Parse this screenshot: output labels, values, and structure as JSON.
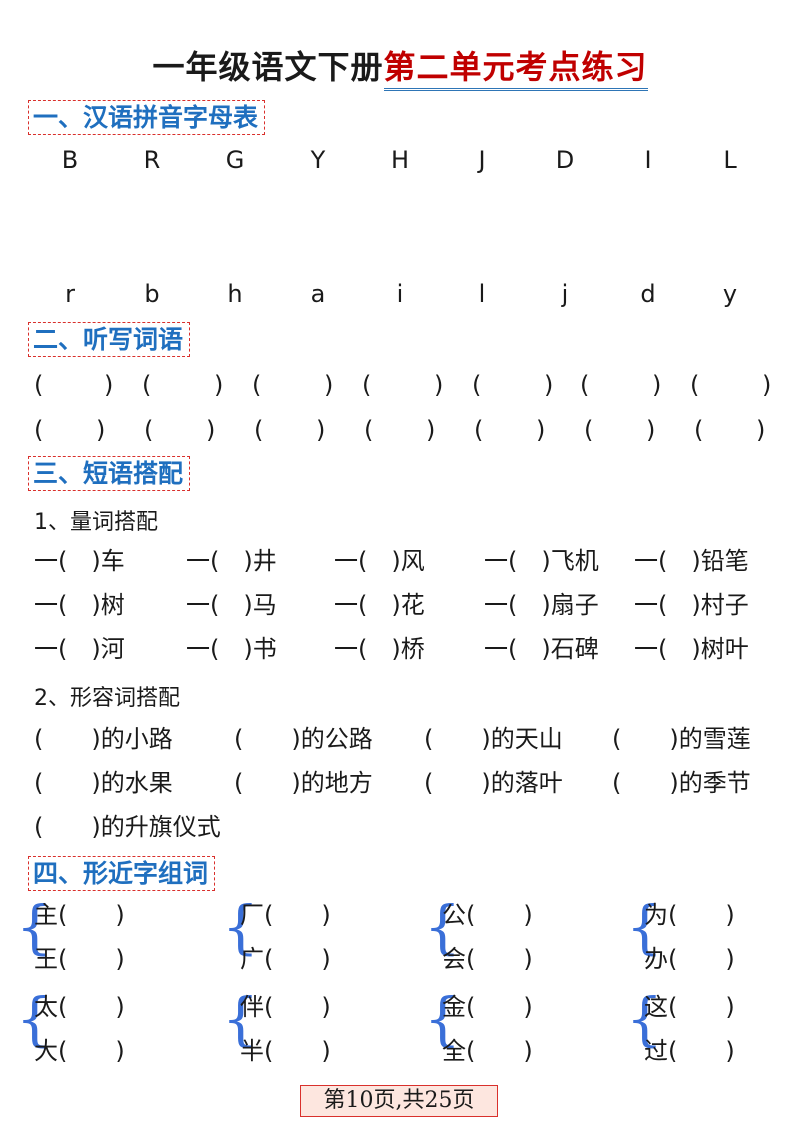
{
  "title": {
    "part1": "一年级语文下册",
    "part2": "第二单元考点练习"
  },
  "section1": {
    "heading": "一、汉语拼音字母表",
    "upper": [
      "B",
      "R",
      "G",
      "Y",
      "H",
      "J",
      "D",
      "I",
      "L"
    ],
    "lower": [
      "r",
      "b",
      "h",
      "a",
      "i",
      "l",
      "j",
      "d",
      "y"
    ]
  },
  "section2": {
    "heading": "二、听写词语",
    "paren_open": "(",
    "paren_close": ")"
  },
  "section3": {
    "heading": "三、短语搭配",
    "sub1": "1、量词搭配",
    "measure_rows": [
      [
        "一(　)车",
        "一(　)井",
        "一(　)风",
        "一(　)飞机",
        "一(　)铅笔"
      ],
      [
        "一(　)树",
        "一(　)马",
        "一(　)花",
        "一(　)扇子",
        "一(　)村子"
      ],
      [
        "一(　)河",
        "一(　)书",
        "一(　)桥",
        "一(　)石碑",
        "一(　)树叶"
      ]
    ],
    "sub2": "2、形容词搭配",
    "adj_rows": [
      [
        "(　　)的小路",
        "(　　)的公路",
        "(　　)的天山",
        "(　　)的雪莲"
      ],
      [
        "(　　)的水果",
        "(　　)的地方",
        "(　　)的落叶",
        "(　　)的季节"
      ],
      [
        "(　　)的升旗仪式"
      ]
    ]
  },
  "section4": {
    "heading": "四、形近字组词",
    "brace_glyph": "{",
    "groups": [
      [
        "主(　　)",
        "王(　　)"
      ],
      [
        "厂(　　)",
        "广(　　)"
      ],
      [
        "公(　　)",
        "会(　　)"
      ],
      [
        "为(　　)",
        "办(　　)"
      ],
      [
        "太(　　)",
        "大(　　)"
      ],
      [
        "伴(　　)",
        "半(　　)"
      ],
      [
        "金(　　)",
        "全(　　)"
      ],
      [
        "这(　　)",
        "过(　　)"
      ]
    ]
  },
  "footer": "第10页,共25页"
}
